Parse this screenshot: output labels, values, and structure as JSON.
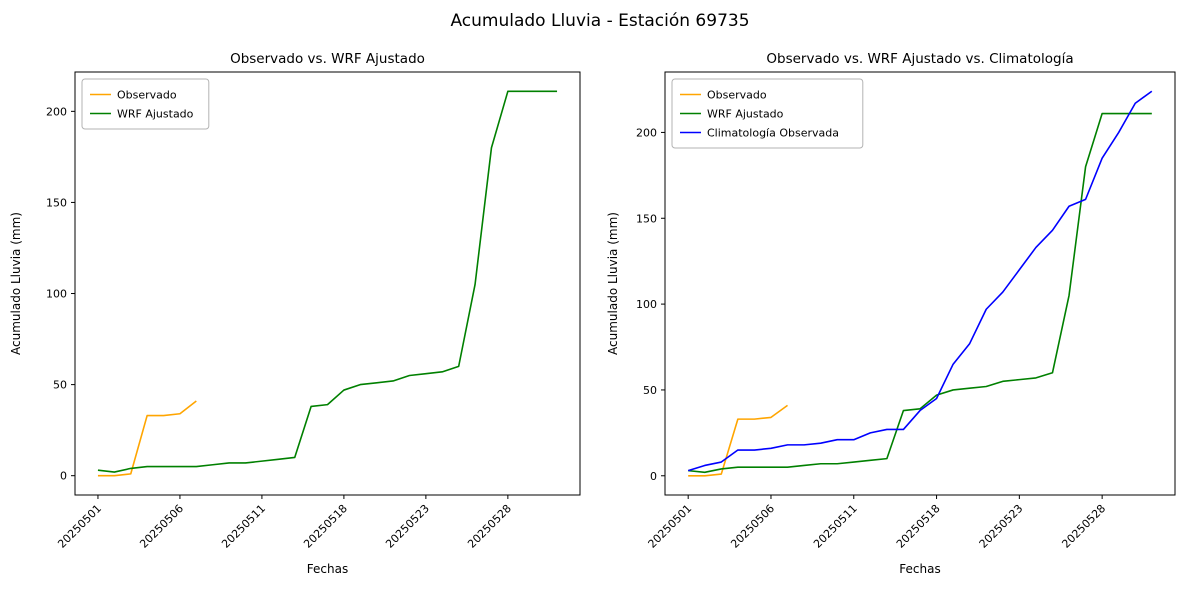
{
  "figure": {
    "title": "Acumulado Lluvia - Estación 69735"
  },
  "colors": {
    "observado": "#FFA500",
    "wrf_ajustado": "#008000",
    "climatologia": "#0000FF"
  },
  "chart_data": [
    {
      "type": "line",
      "title": "Observado vs. WRF Ajustado",
      "xlabel": "Fechas",
      "ylabel": "Acumulado Lluvia (mm)",
      "x_tick_indices": [
        0,
        5,
        10,
        15,
        20,
        25
      ],
      "x_tick_labels": [
        "20250501",
        "20250506",
        "20250511",
        "20250518",
        "20250523",
        "20250528"
      ],
      "y_ticks": [
        0,
        50,
        100,
        150,
        200
      ],
      "ylim": [
        -10.6,
        221.6
      ],
      "n_points": 29,
      "grid": false,
      "legend_position": "upper-left",
      "series": [
        {
          "name": "Observado",
          "color": "#FFA500",
          "values": [
            0,
            0,
            1,
            33,
            33,
            34,
            41
          ]
        },
        {
          "name": "WRF Ajustado",
          "color": "#008000",
          "values": [
            3,
            2,
            4,
            5,
            5,
            5,
            5,
            6,
            7,
            7,
            8,
            9,
            10,
            38,
            39,
            47,
            50,
            51,
            52,
            55,
            56,
            57,
            60,
            105,
            180,
            211,
            211,
            211,
            211
          ]
        }
      ]
    },
    {
      "type": "line",
      "title": "Observado vs. WRF Ajustado vs. Climatología",
      "xlabel": "Fechas",
      "ylabel": "Acumulado Lluvia (mm)",
      "x_tick_indices": [
        0,
        5,
        10,
        15,
        20,
        25
      ],
      "x_tick_labels": [
        "20250501",
        "20250506",
        "20250511",
        "20250518",
        "20250523",
        "20250528"
      ],
      "y_ticks": [
        0,
        50,
        100,
        150,
        200
      ],
      "ylim": [
        -11.2,
        235.2
      ],
      "n_points": 29,
      "grid": false,
      "legend_position": "upper-left",
      "series": [
        {
          "name": "Observado",
          "color": "#FFA500",
          "values": [
            0,
            0,
            1,
            33,
            33,
            34,
            41
          ]
        },
        {
          "name": "WRF Ajustado",
          "color": "#008000",
          "values": [
            3,
            2,
            4,
            5,
            5,
            5,
            5,
            6,
            7,
            7,
            8,
            9,
            10,
            38,
            39,
            47,
            50,
            51,
            52,
            55,
            56,
            57,
            60,
            105,
            180,
            211,
            211,
            211,
            211
          ]
        },
        {
          "name": "Climatología Observada",
          "color": "#0000FF",
          "values": [
            3,
            6,
            8,
            15,
            15,
            16,
            18,
            18,
            19,
            21,
            21,
            25,
            27,
            27,
            38,
            45,
            65,
            77,
            97,
            107,
            120,
            133,
            143,
            157,
            161,
            185,
            200,
            217,
            224
          ]
        }
      ]
    }
  ]
}
